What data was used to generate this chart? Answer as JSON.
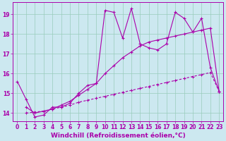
{
  "xlabel": "Windchill (Refroidissement éolien,°C)",
  "bg_color": "#cce8f0",
  "line_color": "#aa00aa",
  "grid_color": "#99ccbb",
  "xlim": [
    -0.5,
    23.5
  ],
  "ylim": [
    13.6,
    19.6
  ],
  "xticks": [
    0,
    1,
    2,
    3,
    4,
    5,
    6,
    7,
    8,
    9,
    10,
    11,
    12,
    13,
    14,
    15,
    16,
    17,
    18,
    19,
    20,
    21,
    22,
    23
  ],
  "yticks": [
    14,
    15,
    16,
    17,
    18,
    19
  ],
  "series1_x": [
    0,
    1,
    2,
    3,
    4,
    5,
    6,
    7,
    8,
    9,
    10,
    11,
    12,
    13,
    14,
    15,
    16,
    17,
    18,
    19,
    20,
    21,
    22,
    23
  ],
  "series1_y": [
    15.6,
    14.7,
    13.8,
    13.9,
    14.3,
    14.3,
    14.5,
    15.0,
    15.4,
    15.5,
    19.2,
    19.1,
    17.8,
    19.3,
    17.5,
    17.3,
    17.2,
    17.5,
    19.1,
    18.8,
    18.1,
    18.8,
    16.3,
    15.1
  ],
  "series2_x": [
    1,
    2,
    3,
    4,
    5,
    6,
    7,
    8,
    9,
    10,
    11,
    12,
    13,
    14,
    15,
    16,
    17,
    18,
    19,
    20,
    21,
    22,
    23
  ],
  "series2_y": [
    14.0,
    14.05,
    14.1,
    14.2,
    14.3,
    14.4,
    14.55,
    14.65,
    14.75,
    14.85,
    14.95,
    15.05,
    15.15,
    15.25,
    15.35,
    15.45,
    15.55,
    15.65,
    15.75,
    15.85,
    15.95,
    16.05,
    15.1
  ],
  "series3_x": [
    1,
    2,
    3,
    4,
    5,
    6,
    7,
    8,
    9,
    10,
    11,
    12,
    13,
    14,
    15,
    16,
    17,
    18,
    19,
    20,
    21,
    22,
    23
  ],
  "series3_y": [
    14.3,
    14.0,
    14.1,
    14.2,
    14.4,
    14.6,
    14.9,
    15.2,
    15.5,
    16.0,
    16.4,
    16.8,
    17.1,
    17.4,
    17.6,
    17.7,
    17.8,
    17.9,
    18.0,
    18.1,
    18.2,
    18.3,
    15.1
  ],
  "tick_fontsize": 5.5,
  "label_fontsize": 6.5
}
